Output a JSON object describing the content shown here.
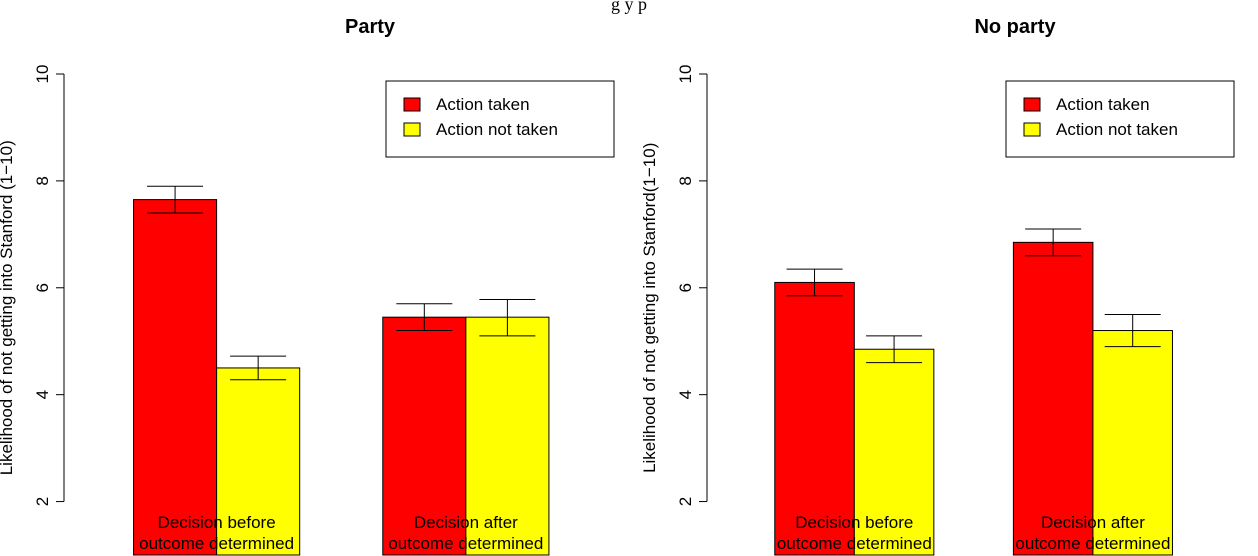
{
  "figure_caption": "g                                                          y                                  p",
  "chart_data": [
    {
      "type": "bar",
      "title": "Party",
      "ylabel": "Likelihood of not getting into Stanford (1−10)",
      "ylim": [
        1,
        10
      ],
      "yticks": [
        "2",
        "4",
        "6",
        "8",
        "10"
      ],
      "categories": [
        [
          "Decision before",
          "outcome determined"
        ],
        [
          "Decision after",
          "outcome determined"
        ]
      ],
      "series": [
        {
          "name": "Action taken",
          "color": "#ff0000",
          "values": [
            7.65,
            5.45
          ],
          "err_low": [
            7.4,
            5.2
          ],
          "err_high": [
            7.9,
            5.7
          ]
        },
        {
          "name": "Action not taken",
          "color": "#ffff00",
          "values": [
            4.5,
            5.45
          ],
          "err_low": [
            4.28,
            5.1
          ],
          "err_high": [
            4.72,
            5.78
          ]
        }
      ],
      "legend_position": "top-right",
      "grid": false
    },
    {
      "type": "bar",
      "title": "No party",
      "ylabel": "Likelihood of not getting into Stanford(1−10)",
      "ylim": [
        1,
        10
      ],
      "yticks": [
        "2",
        "4",
        "6",
        "8",
        "10"
      ],
      "categories": [
        [
          "Decision before",
          "outcome determined"
        ],
        [
          "Decision after",
          "outcome determined"
        ]
      ],
      "series": [
        {
          "name": "Action taken",
          "color": "#ff0000",
          "values": [
            6.1,
            6.85
          ],
          "err_low": [
            5.85,
            6.6
          ],
          "err_high": [
            6.35,
            7.1
          ]
        },
        {
          "name": "Action not taken",
          "color": "#ffff00",
          "values": [
            4.85,
            5.2
          ],
          "err_low": [
            4.6,
            4.9
          ],
          "err_high": [
            5.1,
            5.5
          ]
        }
      ],
      "legend_position": "top-right",
      "grid": false
    }
  ]
}
